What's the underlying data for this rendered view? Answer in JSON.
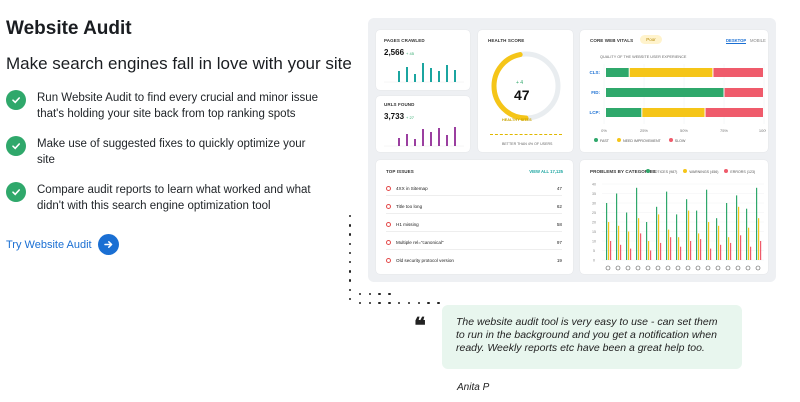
{
  "section": {
    "title": "Website Audit",
    "subtitle": "Make search engines fall in love with your site",
    "features": [
      "Run Website Audit to find every crucial and minor issue that's holding your site back from top ranking spots",
      "Make use of suggested fixes to quickly optimize your site",
      "Compare audit reports to learn what worked and what didn't with this search engine optimization tool"
    ],
    "cta_label": "Try Website Audit"
  },
  "colors": {
    "accent": "#1a6fd3",
    "check": "#2fa86b",
    "fast": "#2fa86b",
    "needs_improvement": "#f5c518",
    "slow": "#ef5b6b",
    "issue": "#e34a4a",
    "bars": "#1ba5a0",
    "bars2": "#9b3fa0"
  },
  "dashboard": {
    "pages_crawled": {
      "label": "PAGES CRAWLED",
      "value": "2,566",
      "delta": "+ 45",
      "bars": [
        0.55,
        0.75,
        0.4,
        0.95,
        0.7,
        0.55,
        0.85,
        0.6
      ]
    },
    "urls_found": {
      "label": "URLS FOUND",
      "value": "3,733",
      "delta": "+ 27",
      "bars": [
        0.4,
        0.6,
        0.35,
        0.85,
        0.7,
        0.9,
        0.55,
        0.95
      ]
    },
    "health_score": {
      "label": "HEALTH SCORE",
      "delta": "+ 4",
      "value": "47",
      "status": "HEALTHY SITES",
      "note": "BETTER THAN 4% OF USERS",
      "fraction": 0.47
    },
    "core_web_vitals": {
      "label": "CORE WEB VITALS",
      "badge": "Poor",
      "tab_desktop": "DESKTOP",
      "tab_mobile": "MOBILE",
      "subtitle": "QUALITY OF THE WEBSITE USER EXPERIENCE",
      "rows": [
        {
          "name": "CLS",
          "fast": 15,
          "needs": 53,
          "slow": 32
        },
        {
          "name": "FID",
          "fast": 75,
          "needs": 0,
          "slow": 25
        },
        {
          "name": "LCP",
          "fast": 23,
          "needs": 40,
          "slow": 37
        }
      ],
      "ticks": [
        "0%",
        "25%",
        "50%",
        "75%",
        "100%"
      ],
      "legend": [
        "FAST",
        "NEED IMPROVEMENT",
        "SLOW"
      ]
    },
    "top_issues": {
      "label": "TOP ISSUES",
      "link": "VIEW ALL 17,125",
      "items": [
        {
          "text": "4XX in Sitemap",
          "count": "47"
        },
        {
          "text": "Title too long",
          "count": "62"
        },
        {
          "text": "H1 missing",
          "count": "58"
        },
        {
          "text": "Multiple rel=\"canonical\"",
          "count": "97"
        },
        {
          "text": "Old security protocol version",
          "count": "19"
        }
      ]
    },
    "problems": {
      "label": "PROBLEMS BY CATEGORIES",
      "legend": [
        "NOTICES (987)",
        "WARNINGS (456)",
        "ERRORS (123)"
      ],
      "yticks": [
        "40",
        "35",
        "30",
        "25",
        "20",
        "15",
        "10",
        "5",
        "0"
      ],
      "values": [
        [
          30,
          20,
          10
        ],
        [
          35,
          18,
          8
        ],
        [
          25,
          15,
          6
        ],
        [
          38,
          22,
          14
        ],
        [
          20,
          10,
          5
        ],
        [
          28,
          24,
          9
        ],
        [
          36,
          16,
          12
        ],
        [
          24,
          12,
          7
        ],
        [
          32,
          26,
          10
        ],
        [
          26,
          14,
          11
        ],
        [
          37,
          20,
          6
        ],
        [
          22,
          18,
          8
        ],
        [
          30,
          12,
          9
        ],
        [
          34,
          28,
          13
        ],
        [
          27,
          17,
          7
        ],
        [
          38,
          22,
          10
        ]
      ]
    }
  },
  "testimonial": {
    "quote": "The website audit tool is very easy to use - can set them to run in the background and you get a notification when ready. Weekly reports etc have been a great help too.",
    "author": "Anita P"
  }
}
